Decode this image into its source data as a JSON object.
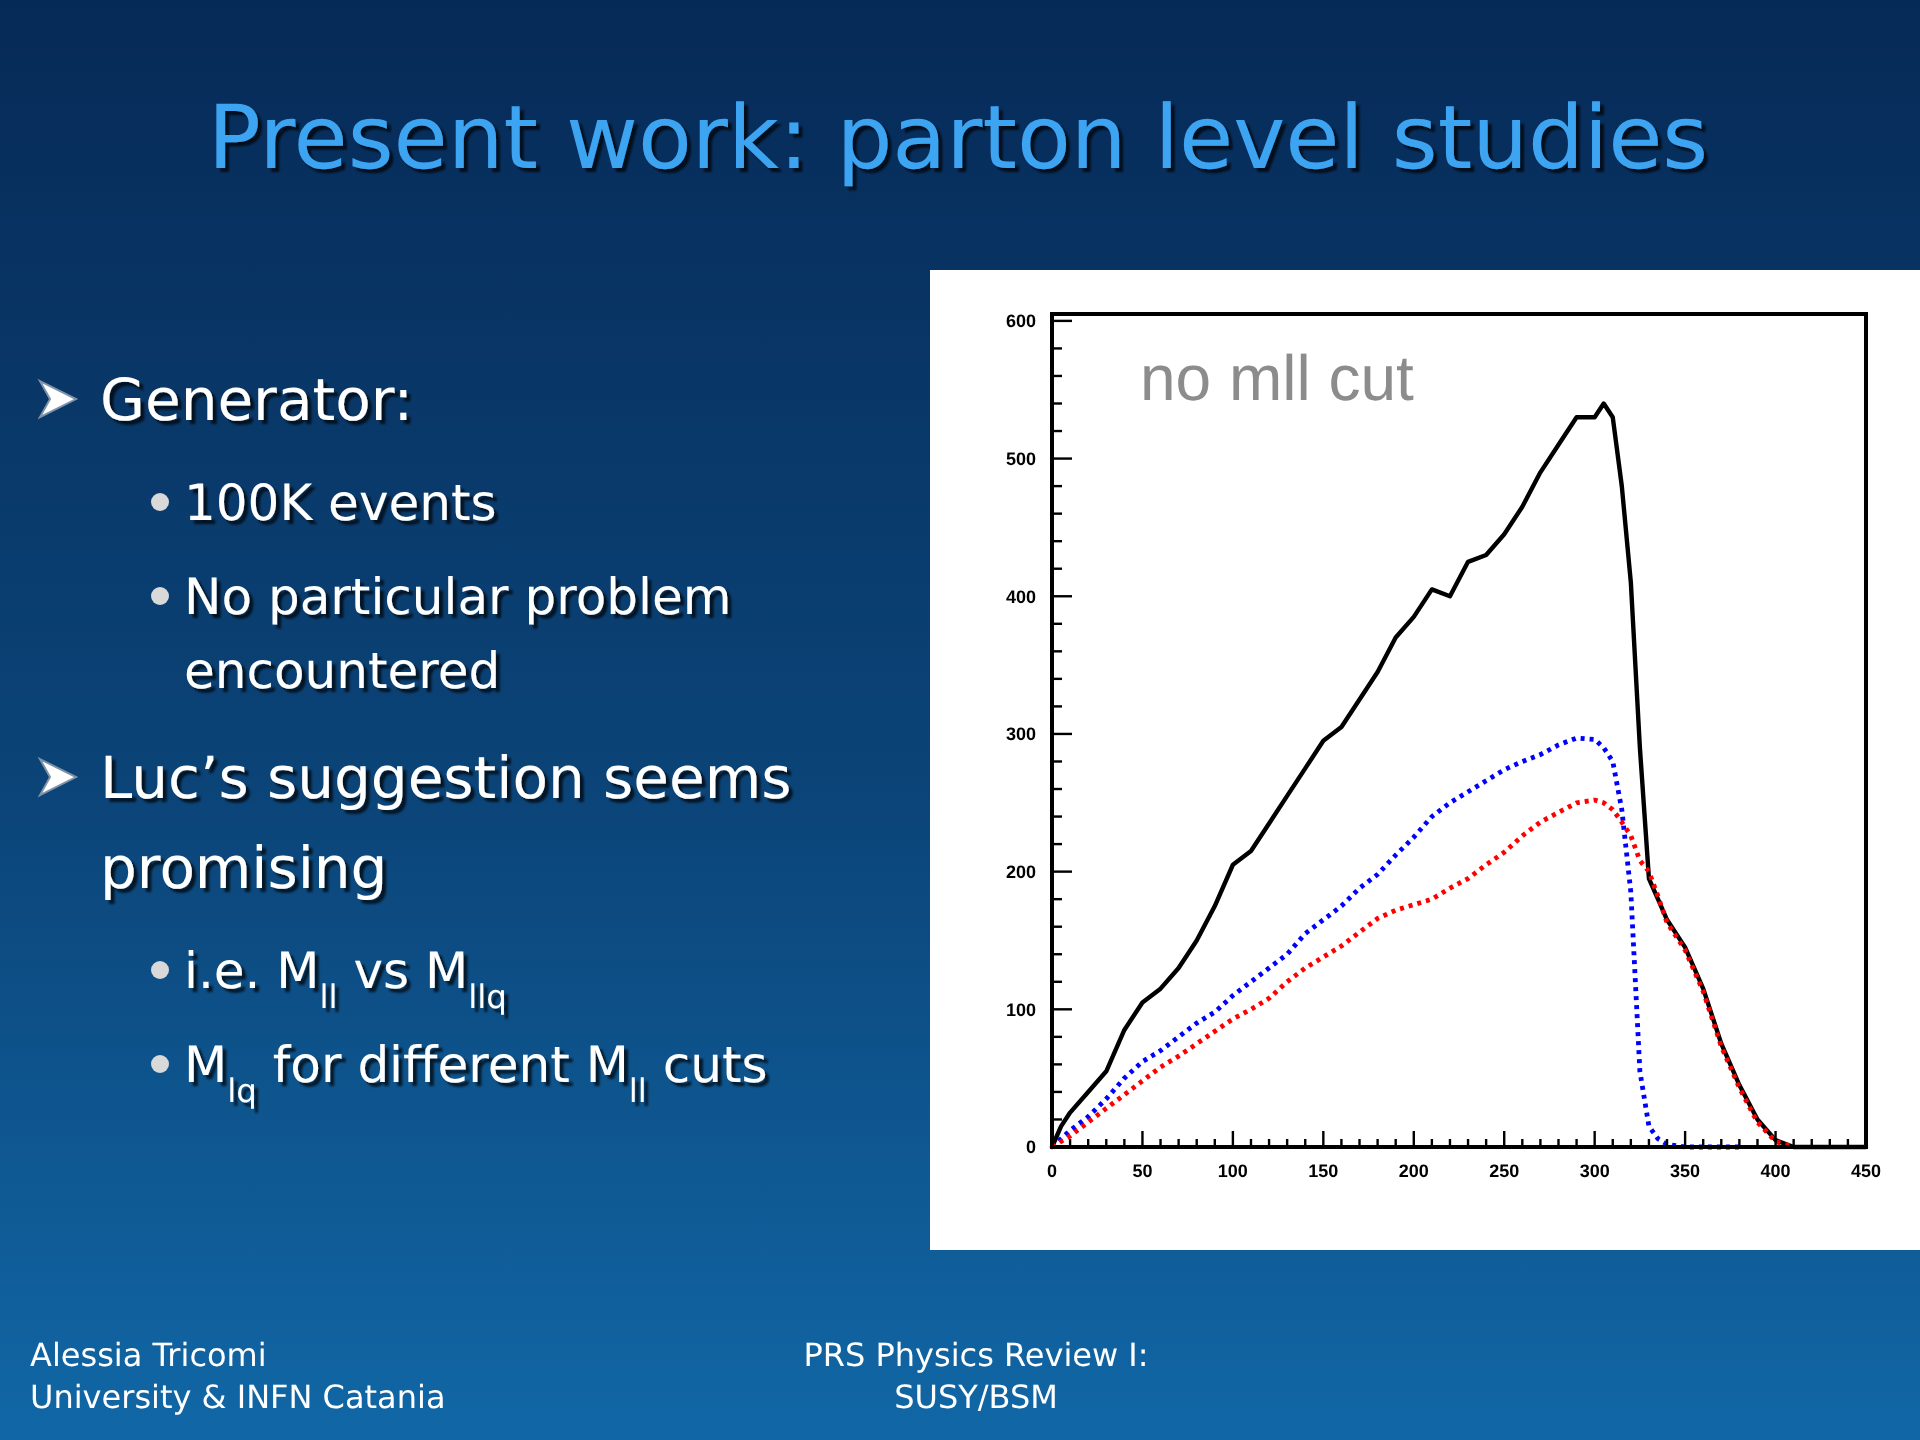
{
  "chart_data": {
    "type": "line",
    "title": "Present work: parton level studies",
    "annotations": [
      "Generator:",
      "100K events",
      "No particular problem encountered",
      "Luc’s suggestion seems promising",
      "i.e. M$_{ll}$ vs M$_{llq}$",
      "M$_{lq}$ for different M$_{ll}$ cuts",
      "no mll cut",
      "Alessia Tricomi",
      "University & INFN Catania",
      "PRS Physics Review I: SUSY/BSM"
    ],
    "x": [
      0,
      5,
      10,
      20,
      30,
      40,
      50,
      60,
      70,
      80,
      90,
      100,
      110,
      120,
      130,
      140,
      150,
      160,
      170,
      180,
      190,
      200,
      210,
      220,
      230,
      240,
      250,
      260,
      270,
      280,
      290,
      300,
      305,
      310,
      315,
      320,
      325,
      330,
      335,
      340,
      350,
      360,
      370,
      380,
      390,
      400,
      410,
      420,
      450
    ],
    "series": [
      {
        "color": "#000000",
        "values": [
          0,
          15,
          25,
          40,
          55,
          85,
          105,
          115,
          130,
          150,
          175,
          205,
          215,
          235,
          255,
          275,
          295,
          305,
          325,
          345,
          370,
          385,
          405,
          400,
          425,
          430,
          445,
          465,
          490,
          510,
          530,
          530,
          540,
          530,
          480,
          410,
          290,
          195,
          180,
          165,
          145,
          115,
          75,
          45,
          20,
          5,
          0,
          0,
          0
        ]
      },
      {
        "color": "#0000ff",
        "line_style": "dotted",
        "values": [
          0,
          6,
          12,
          22,
          35,
          50,
          62,
          70,
          80,
          90,
          98,
          110,
          120,
          130,
          140,
          155,
          165,
          175,
          188,
          198,
          212,
          225,
          240,
          250,
          258,
          266,
          274,
          280,
          285,
          292,
          297,
          296,
          290,
          280,
          245,
          185,
          55,
          15,
          6,
          2,
          0,
          0,
          0,
          0,
          null,
          null,
          null,
          null,
          null
        ]
      },
      {
        "color": "#ff0000",
        "line_style": "dotted",
        "values": [
          0,
          4,
          8,
          18,
          28,
          38,
          48,
          58,
          66,
          75,
          84,
          93,
          100,
          108,
          120,
          130,
          138,
          146,
          156,
          166,
          172,
          176,
          180,
          188,
          195,
          205,
          214,
          226,
          236,
          243,
          250,
          252,
          250,
          245,
          236,
          226,
          208,
          200,
          182,
          163,
          143,
          113,
          73,
          43,
          18,
          4,
          0,
          null,
          null
        ]
      }
    ],
    "xlim": [
      0,
      450
    ],
    "ylim": [
      0,
      605
    ],
    "xticks": [
      0,
      {
        "value": 10,
        "label": null
      },
      {
        "value": 20,
        "label": null
      },
      {
        "value": 30,
        "label": null
      },
      {
        "value": 40,
        "label": null
      },
      50,
      {
        "value": 60,
        "label": null
      },
      {
        "value": 70,
        "label": null
      },
      {
        "value": 80,
        "label": null
      },
      {
        "value": 90,
        "label": null
      },
      100,
      {
        "value": 110,
        "label": null
      },
      {
        "value": 120,
        "label": null
      },
      {
        "value": 130,
        "label": null
      },
      {
        "value": 140,
        "label": null
      },
      150,
      {
        "value": 160,
        "label": null
      },
      {
        "value": 170,
        "label": null
      },
      {
        "value": 180,
        "label": null
      },
      {
        "value": 190,
        "label": null
      },
      200,
      {
        "value": 210,
        "label": null
      },
      {
        "value": 220,
        "label": null
      },
      {
        "value": 230,
        "label": null
      },
      {
        "value": 240,
        "label": null
      },
      250,
      {
        "value": 260,
        "label": null
      },
      {
        "value": 270,
        "label": null
      },
      {
        "value": 280,
        "label": null
      },
      {
        "value": 290,
        "label": null
      },
      300,
      {
        "value": 310,
        "label": null
      },
      {
        "value": 320,
        "label": null
      },
      {
        "value": 330,
        "label": null
      },
      {
        "value": 340,
        "label": null
      },
      350,
      {
        "value": 360,
        "label": null
      },
      {
        "value": 370,
        "label": null
      },
      {
        "value": 380,
        "label": null
      },
      {
        "value": 390,
        "label": null
      },
      400,
      {
        "value": 410,
        "label": null
      },
      {
        "value": 420,
        "label": null
      },
      {
        "value": 430,
        "label": null
      },
      {
        "value": 440,
        "label": null
      },
      450
    ],
    "yticks": [
      0,
      {
        "value": 20,
        "label": null
      },
      {
        "value": 40,
        "label": null
      },
      {
        "value": 60,
        "label": null
      },
      {
        "value": 80,
        "label": null
      },
      100,
      {
        "value": 120,
        "label": null
      },
      {
        "value": 140,
        "label": null
      },
      {
        "value": 160,
        "label": null
      },
      {
        "value": 180,
        "label": null
      },
      200,
      {
        "value": 220,
        "label": null
      },
      {
        "value": 240,
        "label": null
      },
      {
        "value": 260,
        "label": null
      },
      {
        "value": 280,
        "label": null
      },
      300,
      {
        "value": 320,
        "label": null
      },
      {
        "value": 340,
        "label": null
      },
      {
        "value": 360,
        "label": null
      },
      {
        "value": 380,
        "label": null
      },
      400,
      {
        "value": 420,
        "label": null
      },
      {
        "value": 440,
        "label": null
      },
      {
        "value": 460,
        "label": null
      },
      {
        "value": 480,
        "label": null
      },
      500,
      {
        "value": 520,
        "label": null
      },
      {
        "value": 540,
        "label": null
      },
      {
        "value": 560,
        "label": null
      },
      {
        "value": 580,
        "label": null
      },
      600
    ]
  }
}
